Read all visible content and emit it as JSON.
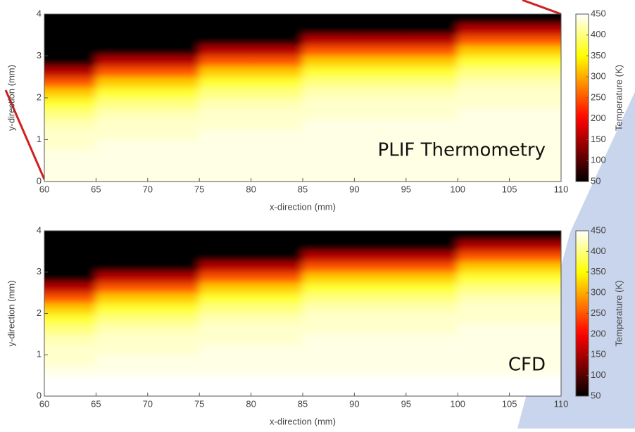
{
  "chart_data": [
    {
      "type": "heatmap",
      "annotation": "PLIF Thermometry",
      "xlabel": "x-direction (mm)",
      "ylabel": "y-direction (mm)",
      "colorbar_label": "Temperature (K)",
      "colormap": "hot",
      "x": [
        62.5,
        67.5,
        72.5,
        77.5,
        82.5,
        87.5,
        92.5,
        97.5,
        102.5,
        107.5
      ],
      "y": [
        0.125,
        0.375,
        0.625,
        0.875,
        1.125,
        1.375,
        1.625,
        1.875,
        2.125,
        2.375,
        2.625,
        2.875,
        3.125,
        3.375,
        3.625,
        3.875
      ],
      "z": [
        [
          440,
          440,
          440,
          440,
          440,
          440,
          440,
          440,
          440,
          440
        ],
        [
          440,
          440,
          440,
          440,
          440,
          440,
          440,
          440,
          440,
          440
        ],
        [
          440,
          440,
          440,
          440,
          440,
          440,
          440,
          440,
          440,
          440
        ],
        [
          430,
          440,
          440,
          440,
          440,
          440,
          440,
          440,
          440,
          440
        ],
        [
          430,
          430,
          430,
          440,
          440,
          440,
          440,
          440,
          440,
          440
        ],
        [
          420,
          430,
          430,
          430,
          430,
          440,
          440,
          440,
          440,
          440
        ],
        [
          400,
          420,
          420,
          430,
          430,
          430,
          430,
          430,
          440,
          440
        ],
        [
          370,
          400,
          400,
          420,
          420,
          430,
          430,
          430,
          430,
          430
        ],
        [
          320,
          370,
          370,
          400,
          400,
          420,
          420,
          420,
          430,
          430
        ],
        [
          250,
          320,
          320,
          370,
          370,
          400,
          400,
          400,
          420,
          420
        ],
        [
          160,
          250,
          250,
          320,
          320,
          370,
          370,
          370,
          400,
          400
        ],
        [
          50,
          160,
          160,
          250,
          250,
          320,
          320,
          320,
          370,
          370
        ],
        [
          50,
          50,
          50,
          160,
          160,
          250,
          250,
          250,
          320,
          320
        ],
        [
          50,
          50,
          50,
          50,
          50,
          160,
          160,
          160,
          250,
          250
        ],
        [
          50,
          50,
          50,
          50,
          50,
          50,
          50,
          50,
          160,
          160
        ],
        [
          50,
          50,
          50,
          50,
          50,
          50,
          50,
          50,
          50,
          50
        ]
      ],
      "xlim": [
        60,
        110
      ],
      "ylim": [
        0,
        4
      ],
      "xticks": [
        60,
        65,
        70,
        75,
        80,
        85,
        90,
        95,
        100,
        105,
        110
      ],
      "yticks": [
        0,
        1,
        2,
        3,
        4
      ],
      "clim": [
        50,
        450
      ],
      "cticks": [
        50,
        100,
        150,
        200,
        250,
        300,
        350,
        400,
        450
      ]
    },
    {
      "type": "heatmap",
      "annotation": "CFD",
      "xlabel": "x-direction (mm)",
      "ylabel": "y-direction (mm)",
      "colorbar_label": "Temperature (K)",
      "colormap": "hot",
      "x": [
        62.5,
        67.5,
        72.5,
        77.5,
        82.5,
        87.5,
        92.5,
        97.5,
        102.5,
        107.5
      ],
      "y": [
        0.125,
        0.375,
        0.625,
        0.875,
        1.125,
        1.375,
        1.625,
        1.875,
        2.125,
        2.375,
        2.625,
        2.875,
        3.125,
        3.375,
        3.625,
        3.875
      ],
      "z": [
        [
          450,
          450,
          450,
          450,
          450,
          450,
          450,
          450,
          450,
          450
        ],
        [
          450,
          450,
          450,
          450,
          450,
          450,
          450,
          450,
          450,
          450
        ],
        [
          440,
          440,
          440,
          440,
          440,
          440,
          440,
          440,
          440,
          440
        ],
        [
          430,
          440,
          440,
          440,
          440,
          440,
          440,
          440,
          440,
          440
        ],
        [
          430,
          430,
          430,
          440,
          440,
          440,
          440,
          440,
          440,
          440
        ],
        [
          420,
          430,
          430,
          430,
          430,
          440,
          440,
          440,
          440,
          440
        ],
        [
          400,
          420,
          420,
          430,
          430,
          430,
          430,
          430,
          440,
          440
        ],
        [
          370,
          400,
          400,
          420,
          420,
          430,
          430,
          430,
          430,
          430
        ],
        [
          320,
          370,
          370,
          400,
          400,
          420,
          420,
          420,
          430,
          430
        ],
        [
          250,
          320,
          320,
          370,
          370,
          400,
          400,
          400,
          420,
          420
        ],
        [
          160,
          250,
          250,
          320,
          320,
          370,
          370,
          370,
          400,
          400
        ],
        [
          50,
          160,
          160,
          250,
          250,
          320,
          320,
          320,
          370,
          370
        ],
        [
          50,
          50,
          50,
          160,
          160,
          250,
          250,
          250,
          320,
          320
        ],
        [
          50,
          50,
          50,
          50,
          50,
          160,
          160,
          160,
          250,
          250
        ],
        [
          50,
          50,
          50,
          50,
          50,
          50,
          50,
          50,
          160,
          160
        ],
        [
          50,
          50,
          50,
          50,
          50,
          50,
          50,
          50,
          50,
          50
        ]
      ],
      "xlim": [
        60,
        110
      ],
      "ylim": [
        0,
        4
      ],
      "xticks": [
        60,
        65,
        70,
        75,
        80,
        85,
        90,
        95,
        100,
        105,
        110
      ],
      "yticks": [
        0,
        1,
        2,
        3,
        4
      ],
      "clim": [
        50,
        450
      ],
      "cticks": [
        50,
        100,
        150,
        200,
        250,
        300,
        350,
        400,
        450
      ]
    }
  ]
}
